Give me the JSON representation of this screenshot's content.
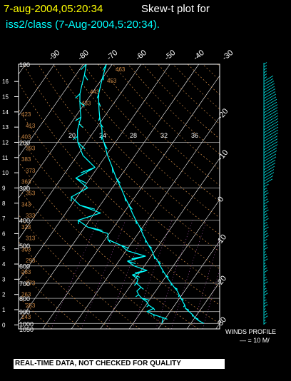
{
  "header": {
    "date_label": "7-aug-2004,05:20:34",
    "title": "Skew-t plot for",
    "subtitle": "iss2/class (7-Aug-2004,5:20:34)."
  },
  "footer": {
    "notice": "REAL-TIME DATA, NOT CHECKED FOR QUALITY",
    "winds_label": "WINDS PROFILE",
    "winds_scale": "— = 10 M/"
  },
  "colors": {
    "background": "#000000",
    "sounding": "#00ffff",
    "temperature_label": "#ffffff",
    "isobar_line": "#b0b0b0",
    "dry_adiabat": "#cc8844",
    "mixing_ratio": "#cc66cc",
    "date": "#ffff00",
    "wind": "#00ffff"
  },
  "chart_data": {
    "type": "skew-t",
    "pressure_levels": [
      100,
      200,
      300,
      400,
      500,
      600,
      700,
      800,
      900,
      1000,
      1050
    ],
    "height_km_ticks": [
      0,
      1,
      2,
      3,
      4,
      5,
      6,
      7,
      8,
      9,
      10,
      11,
      12,
      13,
      14,
      15,
      16
    ],
    "top_temperature_labels": [
      "-90",
      "-80",
      "-70",
      "-60",
      "-50",
      "-40",
      "-30"
    ],
    "right_temperature_labels": [
      "-20",
      "-10",
      "0",
      "10",
      "20",
      "30"
    ],
    "mixing_ratio_labels": [
      "20",
      "24",
      "28",
      "32",
      "36"
    ],
    "adiabat_labels": [
      "243",
      "253",
      "263",
      "273",
      "283",
      "293",
      "303",
      "313",
      "323",
      "333",
      "343",
      "353",
      "363",
      "373",
      "383",
      "393",
      "403",
      "413",
      "423",
      "433",
      "443",
      "453",
      "463"
    ],
    "temperature_profile": [
      [
        1000,
        24.5
      ],
      [
        975,
        22
      ],
      [
        950,
        20
      ],
      [
        925,
        18.5
      ],
      [
        900,
        16.5
      ],
      [
        875,
        14.5
      ],
      [
        850,
        13.5
      ],
      [
        825,
        12
      ],
      [
        800,
        10.5
      ],
      [
        775,
        9
      ],
      [
        750,
        7.5
      ],
      [
        725,
        5.5
      ],
      [
        700,
        3.5
      ],
      [
        675,
        1.5
      ],
      [
        650,
        -0.5
      ],
      [
        625,
        -2.5
      ],
      [
        600,
        -4.5
      ],
      [
        575,
        -6.5
      ],
      [
        550,
        -9
      ],
      [
        525,
        -11
      ],
      [
        500,
        -13.5
      ],
      [
        475,
        -16
      ],
      [
        450,
        -18.5
      ],
      [
        425,
        -21
      ],
      [
        400,
        -24
      ],
      [
        375,
        -27
      ],
      [
        350,
        -30
      ],
      [
        325,
        -33.5
      ],
      [
        300,
        -37
      ],
      [
        275,
        -41
      ],
      [
        250,
        -45
      ],
      [
        225,
        -49.5
      ],
      [
        200,
        -54
      ],
      [
        190,
        -56
      ],
      [
        180,
        -57.5
      ],
      [
        170,
        -59.5
      ],
      [
        160,
        -61.5
      ],
      [
        150,
        -63.5
      ],
      [
        140,
        -65.5
      ],
      [
        130,
        -67.5
      ],
      [
        120,
        -69
      ],
      [
        110,
        -70.5
      ],
      [
        100,
        -72
      ]
    ],
    "dewpoint_profile": [
      [
        1000,
        10
      ],
      [
        975,
        9.5
      ],
      [
        950,
        9
      ],
      [
        925,
        5
      ],
      [
        900,
        2
      ],
      [
        875,
        3.5
      ],
      [
        850,
        1
      ],
      [
        825,
        -0.5
      ],
      [
        800,
        -3
      ],
      [
        775,
        -5
      ],
      [
        750,
        -6.5
      ],
      [
        725,
        -6
      ],
      [
        700,
        -8.5
      ],
      [
        675,
        -9
      ],
      [
        650,
        -12
      ],
      [
        625,
        -8
      ],
      [
        600,
        -13.5
      ],
      [
        575,
        -17
      ],
      [
        550,
        -12
      ],
      [
        525,
        -19.5
      ],
      [
        500,
        -23
      ],
      [
        475,
        -29
      ],
      [
        450,
        -30.5
      ],
      [
        425,
        -39
      ],
      [
        400,
        -44
      ],
      [
        375,
        -38
      ],
      [
        350,
        -47
      ],
      [
        325,
        -52
      ],
      [
        300,
        -48.5
      ],
      [
        275,
        -55
      ],
      [
        250,
        -51
      ],
      [
        225,
        -58
      ],
      [
        200,
        -63
      ],
      [
        190,
        -64.5
      ],
      [
        180,
        -66
      ],
      [
        170,
        -67
      ],
      [
        160,
        -68
      ],
      [
        150,
        -70
      ],
      [
        140,
        -72
      ],
      [
        130,
        -74
      ],
      [
        120,
        -75.5
      ],
      [
        110,
        -77
      ],
      [
        100,
        -79
      ]
    ]
  }
}
